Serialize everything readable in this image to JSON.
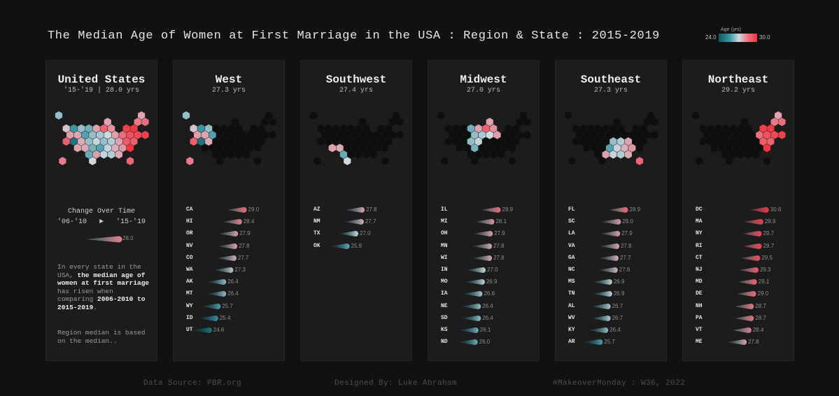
{
  "title": "The Median Age of Women at First Marriage in the USA : Region & State : 2015-2019",
  "legend": {
    "title": "Age",
    "unit": "(yrs)",
    "min": "24.0",
    "max": "30.0",
    "colors": [
      "#0f5963",
      "#3e9aa6",
      "#cfd8df",
      "#e97785",
      "#f2343f"
    ]
  },
  "us": {
    "title": "United States",
    "subtitle": "'15-'19 | 28.0 yrs",
    "change_heading": "Change Over Time",
    "change_from": "'06-'10",
    "arrow": "►",
    "change_to": "'15-'19",
    "change_value": "28.0",
    "text_1": "In every state in the USA, ",
    "text_bold_1": "the median age of women at first marriage",
    "text_2": " has risen when comparing ",
    "text_bold_2": "2006-2010 to 2015-2019",
    "text_3": ".",
    "note": "Region median is based on the median.."
  },
  "footer": {
    "source": "Data Source:  PBR.org",
    "designer": "Designed By:  Luke Abraham",
    "tag": "#MakeoverMonday : W36, 2022"
  },
  "chart_data": {
    "type": "dot-arrow small multiples",
    "value_range": [
      24.0,
      30.0
    ],
    "regions": [
      {
        "name": "West",
        "median": "27.3 yrs",
        "states": [
          {
            "state": "CA",
            "value": 29.0
          },
          {
            "state": "HI",
            "value": 28.4
          },
          {
            "state": "OR",
            "value": 27.9
          },
          {
            "state": "NV",
            "value": 27.8
          },
          {
            "state": "CO",
            "value": 27.7
          },
          {
            "state": "WA",
            "value": 27.3
          },
          {
            "state": "AK",
            "value": 26.4
          },
          {
            "state": "MT",
            "value": 26.4
          },
          {
            "state": "WY",
            "value": 25.7
          },
          {
            "state": "ID",
            "value": 25.4
          },
          {
            "state": "UT",
            "value": 24.6
          }
        ]
      },
      {
        "name": "Southwest",
        "median": "27.4 yrs",
        "states": [
          {
            "state": "AZ",
            "value": 27.8
          },
          {
            "state": "NM",
            "value": 27.7
          },
          {
            "state": "TX",
            "value": 27.0
          },
          {
            "state": "OK",
            "value": 25.9
          }
        ]
      },
      {
        "name": "Midwest",
        "median": "27.0 yrs",
        "states": [
          {
            "state": "IL",
            "value": 28.9
          },
          {
            "state": "MI",
            "value": 28.1
          },
          {
            "state": "OH",
            "value": 27.9
          },
          {
            "state": "MN",
            "value": 27.8
          },
          {
            "state": "WI",
            "value": 27.8
          },
          {
            "state": "IN",
            "value": 27.0
          },
          {
            "state": "MO",
            "value": 26.9
          },
          {
            "state": "IA",
            "value": 26.6
          },
          {
            "state": "NE",
            "value": 26.4
          },
          {
            "state": "SD",
            "value": 26.4
          },
          {
            "state": "KS",
            "value": 26.1
          },
          {
            "state": "ND",
            "value": 26.0
          }
        ]
      },
      {
        "name": "Southeast",
        "median": "27.3 yrs",
        "states": [
          {
            "state": "FL",
            "value": 28.9
          },
          {
            "state": "SC",
            "value": 28.0
          },
          {
            "state": "LA",
            "value": 27.9
          },
          {
            "state": "VA",
            "value": 27.8
          },
          {
            "state": "GA",
            "value": 27.7
          },
          {
            "state": "NC",
            "value": 27.6
          },
          {
            "state": "MS",
            "value": 26.9
          },
          {
            "state": "TN",
            "value": 26.9
          },
          {
            "state": "AL",
            "value": 26.7
          },
          {
            "state": "WV",
            "value": 26.7
          },
          {
            "state": "KY",
            "value": 26.4
          },
          {
            "state": "AR",
            "value": 25.7
          }
        ]
      },
      {
        "name": "Northeast",
        "median": "29.2 yrs",
        "states": [
          {
            "state": "DC",
            "value": 30.6
          },
          {
            "state": "MA",
            "value": 29.9
          },
          {
            "state": "NY",
            "value": 29.7
          },
          {
            "state": "RI",
            "value": 29.7
          },
          {
            "state": "CT",
            "value": 29.5
          },
          {
            "state": "NJ",
            "value": 29.3
          },
          {
            "state": "MD",
            "value": 29.1
          },
          {
            "state": "DE",
            "value": 29.0
          },
          {
            "state": "NH",
            "value": 28.7
          },
          {
            "state": "PA",
            "value": 28.7
          },
          {
            "state": "VT",
            "value": 28.4
          },
          {
            "state": "ME",
            "value": 27.8
          }
        ]
      }
    ]
  }
}
